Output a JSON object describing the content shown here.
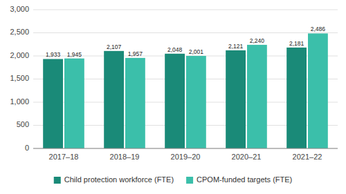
{
  "chart_data": {
    "type": "bar",
    "categories": [
      "2017–18",
      "2018–19",
      "2019–20",
      "2020–21",
      "2021–22"
    ],
    "series": [
      {
        "name": "Child protection workforce (FTE)",
        "color": "#1a8a78",
        "values": [
          1933,
          2107,
          2048,
          2121,
          2181
        ],
        "value_labels": [
          "1,933",
          "2,107",
          "2,048",
          "2,121",
          "2,181"
        ]
      },
      {
        "name": "CPOM-funded targets (FTE)",
        "color": "#3bbfaa",
        "values": [
          1945,
          1957,
          2001,
          2240,
          2486
        ],
        "value_labels": [
          "1,945",
          "1,957",
          "2,001",
          "2,240",
          "2,486"
        ]
      }
    ],
    "ylim": [
      0,
      3000
    ],
    "yticks": [
      0,
      500,
      {
        "value": 1000,
        "label": "1,000"
      },
      {
        "value": 1500,
        "label": "1,500"
      },
      {
        "value": 2000,
        "label": "2,000"
      },
      {
        "value": 2500,
        "label": "2,500"
      },
      {
        "value": 3000,
        "label": "3,000"
      }
    ],
    "grid": true,
    "legend": "bottom",
    "data_labels": true
  }
}
